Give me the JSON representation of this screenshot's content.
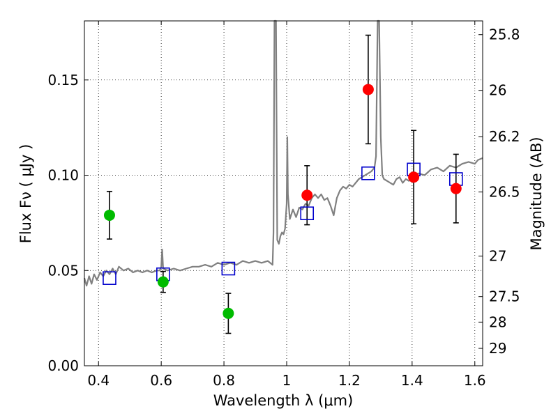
{
  "chart_data": {
    "type": "scatter",
    "xlabel": "Wavelength  λ (μm)",
    "ylabel": "Flux  Fν  ( μJy )",
    "y2label": "Magnitude (AB)",
    "xlim": [
      0.355,
      1.625
    ],
    "ylim": [
      0.0,
      0.181
    ],
    "grid": true,
    "x_ticks": [
      {
        "value": 0.4,
        "label": "0.4"
      },
      {
        "value": 0.6,
        "label": "0.6"
      },
      {
        "value": 0.8,
        "label": "0.8"
      },
      {
        "value": 1.0,
        "label": "1"
      },
      {
        "value": 1.2,
        "label": "1.2"
      },
      {
        "value": 1.4,
        "label": "1.4"
      },
      {
        "value": 1.6,
        "label": "1.6"
      }
    ],
    "y_ticks": [
      {
        "value": 0.0,
        "label": "0.00"
      },
      {
        "value": 0.05,
        "label": "0.05"
      },
      {
        "value": 0.1,
        "label": "0.10"
      },
      {
        "value": 0.15,
        "label": "0.15"
      }
    ],
    "mag_ticks": [
      {
        "value": 25.8,
        "label": "25.8"
      },
      {
        "value": 26.0,
        "label": "26"
      },
      {
        "value": 26.2,
        "label": "26.2"
      },
      {
        "value": 26.5,
        "label": "26.5"
      },
      {
        "value": 27.0,
        "label": "27"
      },
      {
        "value": 27.5,
        "label": "27.5"
      },
      {
        "value": 28.0,
        "label": "28"
      },
      {
        "value": 29.0,
        "label": "29"
      }
    ],
    "observed_optical": {
      "color": "#00bb00",
      "points": [
        {
          "x": 0.435,
          "y": 0.079,
          "yerr": 0.0125
        },
        {
          "x": 0.606,
          "y": 0.044,
          "yerr": 0.0055
        },
        {
          "x": 0.814,
          "y": 0.0275,
          "yerr": 0.0105
        }
      ]
    },
    "observed_nir": {
      "color": "#ff0000",
      "points": [
        {
          "x": 1.065,
          "y": 0.0895,
          "yerr": 0.0155
        },
        {
          "x": 1.26,
          "y": 0.145,
          "yerr": 0.0285
        },
        {
          "x": 1.405,
          "y": 0.099,
          "yerr": 0.0245
        },
        {
          "x": 1.54,
          "y": 0.093,
          "yerr": 0.018
        }
      ]
    },
    "model_photometry": {
      "color": "#0000cc",
      "points": [
        {
          "x": 0.435,
          "y": 0.046
        },
        {
          "x": 0.606,
          "y": 0.048
        },
        {
          "x": 0.814,
          "y": 0.051
        },
        {
          "x": 1.065,
          "y": 0.08
        },
        {
          "x": 1.26,
          "y": 0.101
        },
        {
          "x": 1.405,
          "y": 0.103
        },
        {
          "x": 1.54,
          "y": 0.098
        }
      ]
    },
    "model_spectrum": {
      "color": "#808080",
      "points": [
        [
          0.355,
          0.046
        ],
        [
          0.362,
          0.042
        ],
        [
          0.37,
          0.047
        ],
        [
          0.378,
          0.043
        ],
        [
          0.386,
          0.048
        ],
        [
          0.395,
          0.045
        ],
        [
          0.405,
          0.049
        ],
        [
          0.415,
          0.047
        ],
        [
          0.425,
          0.05
        ],
        [
          0.435,
          0.048
        ],
        [
          0.445,
          0.051
        ],
        [
          0.455,
          0.048
        ],
        [
          0.465,
          0.052
        ],
        [
          0.48,
          0.05
        ],
        [
          0.495,
          0.051
        ],
        [
          0.51,
          0.049
        ],
        [
          0.525,
          0.05
        ],
        [
          0.54,
          0.049
        ],
        [
          0.555,
          0.05
        ],
        [
          0.57,
          0.049
        ],
        [
          0.585,
          0.05
        ],
        [
          0.595,
          0.05
        ],
        [
          0.6,
          0.052
        ],
        [
          0.603,
          0.061
        ],
        [
          0.606,
          0.051
        ],
        [
          0.62,
          0.05
        ],
        [
          0.64,
          0.051
        ],
        [
          0.66,
          0.05
        ],
        [
          0.68,
          0.051
        ],
        [
          0.7,
          0.052
        ],
        [
          0.72,
          0.052
        ],
        [
          0.74,
          0.053
        ],
        [
          0.76,
          0.052
        ],
        [
          0.78,
          0.054
        ],
        [
          0.8,
          0.053
        ],
        [
          0.82,
          0.054
        ],
        [
          0.84,
          0.053
        ],
        [
          0.86,
          0.055
        ],
        [
          0.88,
          0.054
        ],
        [
          0.9,
          0.055
        ],
        [
          0.92,
          0.054
        ],
        [
          0.94,
          0.055
        ],
        [
          0.955,
          0.053
        ],
        [
          0.958,
          0.07
        ],
        [
          0.961,
          0.181
        ],
        [
          0.966,
          0.181
        ],
        [
          0.97,
          0.066
        ],
        [
          0.975,
          0.064
        ],
        [
          0.98,
          0.068
        ],
        [
          0.985,
          0.07
        ],
        [
          0.99,
          0.069
        ],
        [
          0.995,
          0.072
        ],
        [
          1.0,
          0.085
        ],
        [
          1.002,
          0.12
        ],
        [
          1.004,
          0.09
        ],
        [
          1.01,
          0.077
        ],
        [
          1.02,
          0.082
        ],
        [
          1.03,
          0.078
        ],
        [
          1.04,
          0.083
        ],
        [
          1.05,
          0.082
        ],
        [
          1.06,
          0.085
        ],
        [
          1.07,
          0.084
        ],
        [
          1.08,
          0.088
        ],
        [
          1.09,
          0.09
        ],
        [
          1.1,
          0.088
        ],
        [
          1.11,
          0.09
        ],
        [
          1.12,
          0.087
        ],
        [
          1.13,
          0.088
        ],
        [
          1.14,
          0.084
        ],
        [
          1.15,
          0.079
        ],
        [
          1.16,
          0.088
        ],
        [
          1.17,
          0.092
        ],
        [
          1.18,
          0.094
        ],
        [
          1.19,
          0.093
        ],
        [
          1.2,
          0.095
        ],
        [
          1.21,
          0.094
        ],
        [
          1.22,
          0.096
        ],
        [
          1.23,
          0.098
        ],
        [
          1.24,
          0.099
        ],
        [
          1.25,
          0.1
        ],
        [
          1.26,
          0.101
        ],
        [
          1.27,
          0.102
        ],
        [
          1.28,
          0.104
        ],
        [
          1.285,
          0.11
        ],
        [
          1.29,
          0.181
        ],
        [
          1.295,
          0.181
        ],
        [
          1.3,
          0.12
        ],
        [
          1.305,
          0.1
        ],
        [
          1.31,
          0.098
        ],
        [
          1.32,
          0.097
        ],
        [
          1.34,
          0.095
        ],
        [
          1.35,
          0.098
        ],
        [
          1.36,
          0.099
        ],
        [
          1.37,
          0.096
        ],
        [
          1.38,
          0.098
        ],
        [
          1.39,
          0.097
        ],
        [
          1.4,
          0.1
        ],
        [
          1.42,
          0.101
        ],
        [
          1.44,
          0.1
        ],
        [
          1.46,
          0.103
        ],
        [
          1.48,
          0.104
        ],
        [
          1.5,
          0.102
        ],
        [
          1.52,
          0.105
        ],
        [
          1.54,
          0.104
        ],
        [
          1.56,
          0.106
        ],
        [
          1.58,
          0.107
        ],
        [
          1.6,
          0.106
        ],
        [
          1.61,
          0.108
        ],
        [
          1.625,
          0.109
        ]
      ]
    }
  }
}
